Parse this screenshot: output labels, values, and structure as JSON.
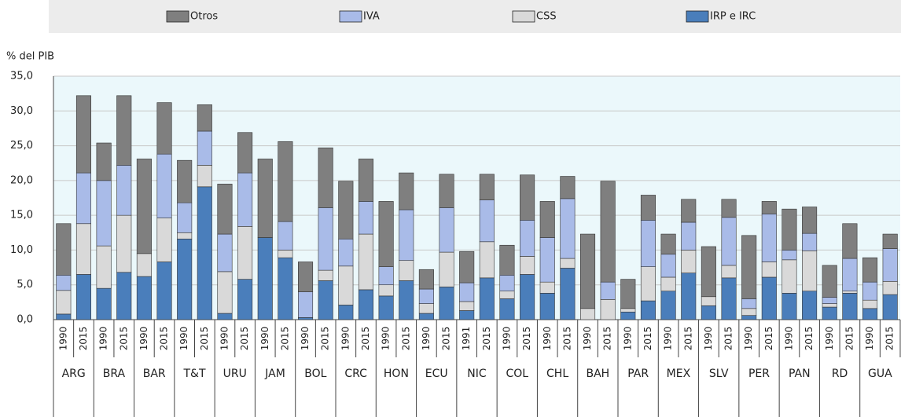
{
  "chart_data": {
    "type": "stacked-bar",
    "y_label": "% del PIB",
    "categories": [
      "1990",
      "2015",
      "1990",
      "2015",
      "1990",
      "2015",
      "1990",
      "2015",
      "1990",
      "2015",
      "1990",
      "2015",
      "1990",
      "2015",
      "1990",
      "2015",
      "1990",
      "2015",
      "1990",
      "2015",
      "1991",
      "2015",
      "1990",
      "2015",
      "1990",
      "2015",
      "1990",
      "2015",
      "1990",
      "2015",
      "1990",
      "2015",
      "1990",
      "2015",
      "1990",
      "2015",
      "1990",
      "2015",
      "1990",
      "2015",
      "1990",
      "2015"
    ],
    "groups": [
      "ARG",
      "BRA",
      "BAR",
      "T&T",
      "URU",
      "JAM",
      "BOL",
      "CRC",
      "HON",
      "ECU",
      "NIC",
      "COL",
      "CHL",
      "BAH",
      "PAR",
      "MEX",
      "SLV",
      "PER",
      "PAN",
      "RD",
      "GUA"
    ],
    "series": [
      {
        "name": "IRP e IRC",
        "color": "#4a7ebb",
        "values": [
          0.8,
          6.5,
          4.5,
          6.8,
          6.2,
          8.3,
          11.6,
          19.1,
          0.9,
          5.8,
          11.8,
          8.9,
          0.3,
          5.6,
          2.1,
          4.3,
          3.4,
          5.6,
          0.9,
          4.7,
          1.3,
          6.0,
          3.0,
          6.5,
          3.8,
          7.4,
          0,
          0,
          1.1,
          2.7,
          4.1,
          6.7,
          2.0,
          6.0,
          0.6,
          6.1,
          3.8,
          4.1,
          1.8,
          3.8,
          1.6,
          3.6
        ]
      },
      {
        "name": "CSS",
        "color": "#d9d9d9",
        "values": [
          3.4,
          7.3,
          6.1,
          8.2,
          3.3,
          6.3,
          0.9,
          3.1,
          6.0,
          7.6,
          0,
          1.1,
          0,
          1.5,
          5.6,
          8.0,
          1.6,
          2.9,
          1.4,
          5.0,
          1.3,
          5.2,
          1.1,
          2.6,
          1.6,
          1.4,
          1.6,
          2.9,
          0.5,
          4.9,
          2.0,
          3.3,
          1.3,
          1.8,
          1.0,
          2.2,
          4.8,
          5.8,
          0.5,
          0.3,
          1.2,
          1.9
        ]
      },
      {
        "name": "IVA",
        "color": "#a9bbe8",
        "values": [
          2.2,
          7.3,
          9.4,
          7.2,
          0,
          9.2,
          4.3,
          4.9,
          5.4,
          7.7,
          0,
          4.1,
          3.7,
          9.0,
          3.9,
          4.7,
          2.6,
          7.3,
          2.1,
          6.4,
          2.7,
          6.0,
          2.3,
          5.2,
          6.4,
          8.6,
          0,
          2.5,
          0,
          6.7,
          3.3,
          4.0,
          0,
          6.9,
          1.4,
          6.9,
          1.4,
          2.5,
          0.9,
          4.7,
          2.6,
          4.7
        ]
      },
      {
        "name": "Otros",
        "color": "#7f7f7f",
        "values": [
          7.4,
          11.1,
          5.4,
          10.0,
          13.6,
          7.4,
          6.1,
          3.8,
          7.2,
          5.8,
          11.3,
          11.5,
          4.3,
          8.6,
          8.3,
          6.1,
          9.4,
          5.3,
          2.8,
          4.8,
          4.5,
          3.7,
          4.3,
          6.5,
          5.2,
          3.2,
          10.7,
          14.5,
          4.2,
          3.6,
          2.9,
          3.3,
          7.2,
          2.6,
          9.1,
          1.8,
          5.9,
          3.8,
          4.6,
          5.0,
          3.5,
          2.1
        ]
      }
    ],
    "ylim": [
      0,
      35
    ],
    "yticks": [
      {
        "value": 0,
        "label": "0,0"
      },
      {
        "value": 5,
        "label": "5,0"
      },
      {
        "value": 10,
        "label": "10,0"
      },
      {
        "value": 15,
        "label": "15,0"
      },
      {
        "value": 20,
        "label": "20,0"
      },
      {
        "value": 25,
        "label": "25,0"
      },
      {
        "value": 30,
        "label": "30,0"
      },
      {
        "value": 35,
        "label": "35,0"
      }
    ],
    "grid": true
  }
}
